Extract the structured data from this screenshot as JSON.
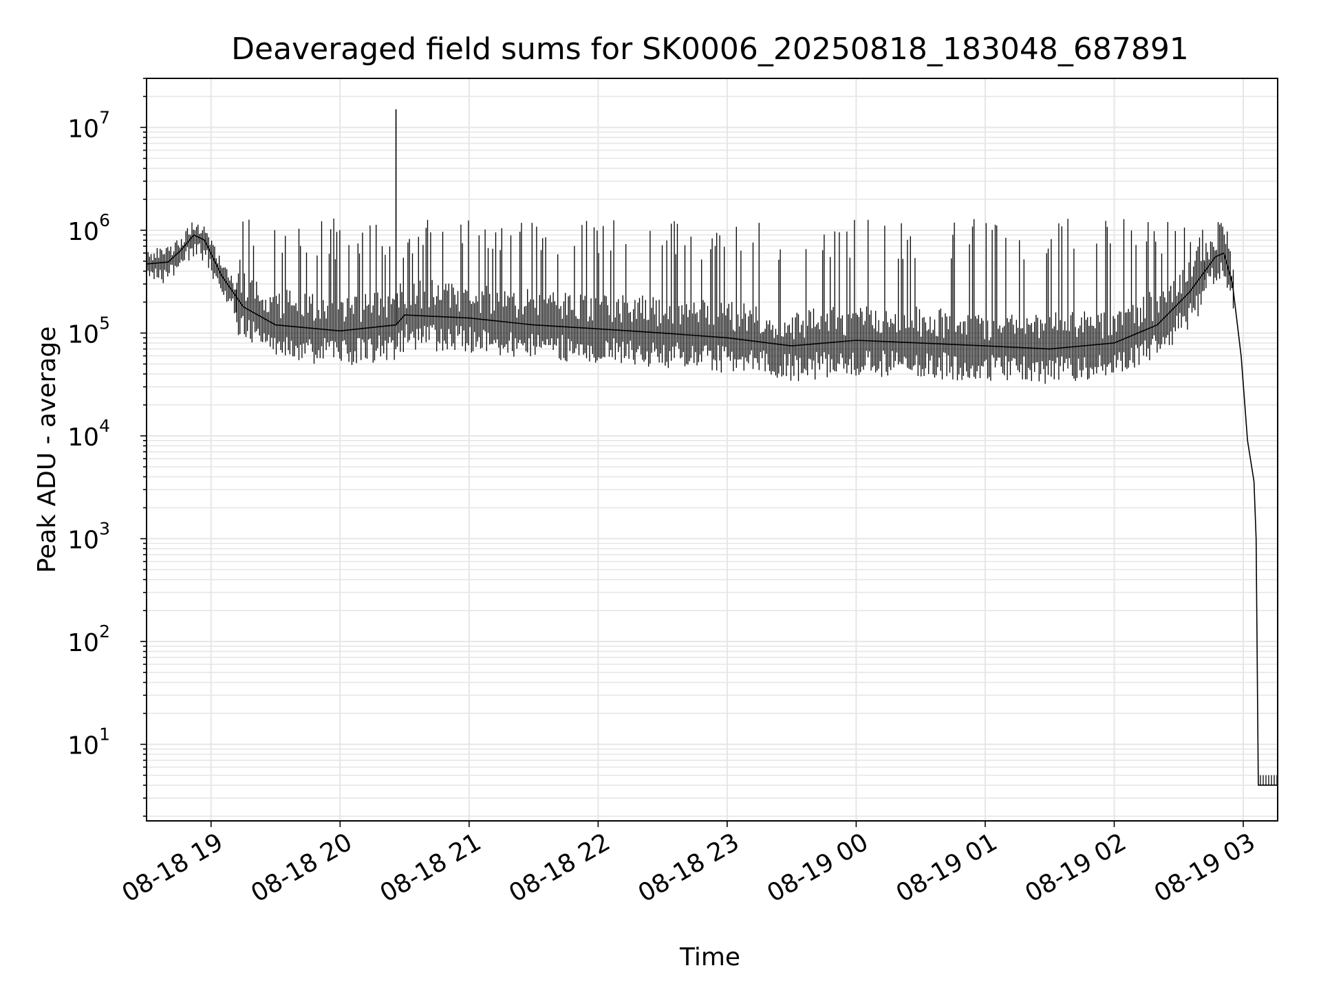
{
  "chart_data": {
    "type": "line",
    "title": "Deaveraged field sums for SK0006_20250818_183048_687891",
    "xlabel": "Time",
    "ylabel": "Peak ADU - average",
    "x_ticks": [
      "08-18 19",
      "08-18 20",
      "08-18 21",
      "08-18 22",
      "08-18 23",
      "08-19 00",
      "08-19 01",
      "08-19 02",
      "08-19 03"
    ],
    "y_ticks": [
      {
        "base": "10",
        "exp": "1",
        "value": 10
      },
      {
        "base": "10",
        "exp": "2",
        "value": 100
      },
      {
        "base": "10",
        "exp": "3",
        "value": 1000
      },
      {
        "base": "10",
        "exp": "4",
        "value": 10000
      },
      {
        "base": "10",
        "exp": "5",
        "value": 100000
      },
      {
        "base": "10",
        "exp": "6",
        "value": 1000000
      },
      {
        "base": "10",
        "exp": "7",
        "value": 10000000
      }
    ],
    "y_scale": "log",
    "ylim": [
      1.8,
      30000000
    ],
    "xlim": [
      "2025-08-18 18:30",
      "2025-08-19 03:16"
    ],
    "grid": true,
    "line_color": "#000000",
    "grid_color": "#e6e6e6",
    "series": [
      {
        "name": "",
        "x": [
          "2025-08-18 18:30",
          "2025-08-18 18:40",
          "2025-08-18 18:46",
          "2025-08-18 18:52",
          "2025-08-18 18:57",
          "2025-08-18 19:05",
          "2025-08-18 19:15",
          "2025-08-18 19:30",
          "2025-08-18 20:00",
          "2025-08-18 20:26",
          "2025-08-18 20:30",
          "2025-08-18 21:00",
          "2025-08-18 21:30",
          "2025-08-18 22:00",
          "2025-08-18 22:30",
          "2025-08-18 23:00",
          "2025-08-18 23:30",
          "2025-08-19 00:00",
          "2025-08-19 00:30",
          "2025-08-19 01:00",
          "2025-08-19 01:30",
          "2025-08-19 02:00",
          "2025-08-19 02:20",
          "2025-08-19 02:35",
          "2025-08-19 02:47",
          "2025-08-19 02:51",
          "2025-08-19 02:55",
          "2025-08-19 02:59",
          "2025-08-19 03:02",
          "2025-08-19 03:05",
          "2025-08-19 03:06",
          "2025-08-19 03:07",
          "2025-08-19 03:08",
          "2025-08-19 03:16"
        ],
        "y": [
          470000,
          490000,
          640000,
          900000,
          800000,
          360000,
          180000,
          120000,
          105000,
          120000,
          150000,
          140000,
          120000,
          110000,
          100000,
          90000,
          75000,
          85000,
          80000,
          75000,
          70000,
          80000,
          120000,
          250000,
          550000,
          600000,
          300000,
          60000,
          9000,
          3600,
          1000,
          4,
          4,
          4
        ]
      }
    ],
    "annotations": [
      {
        "kind": "spike",
        "x": "2025-08-18 20:26",
        "y": 15000000
      }
    ]
  }
}
